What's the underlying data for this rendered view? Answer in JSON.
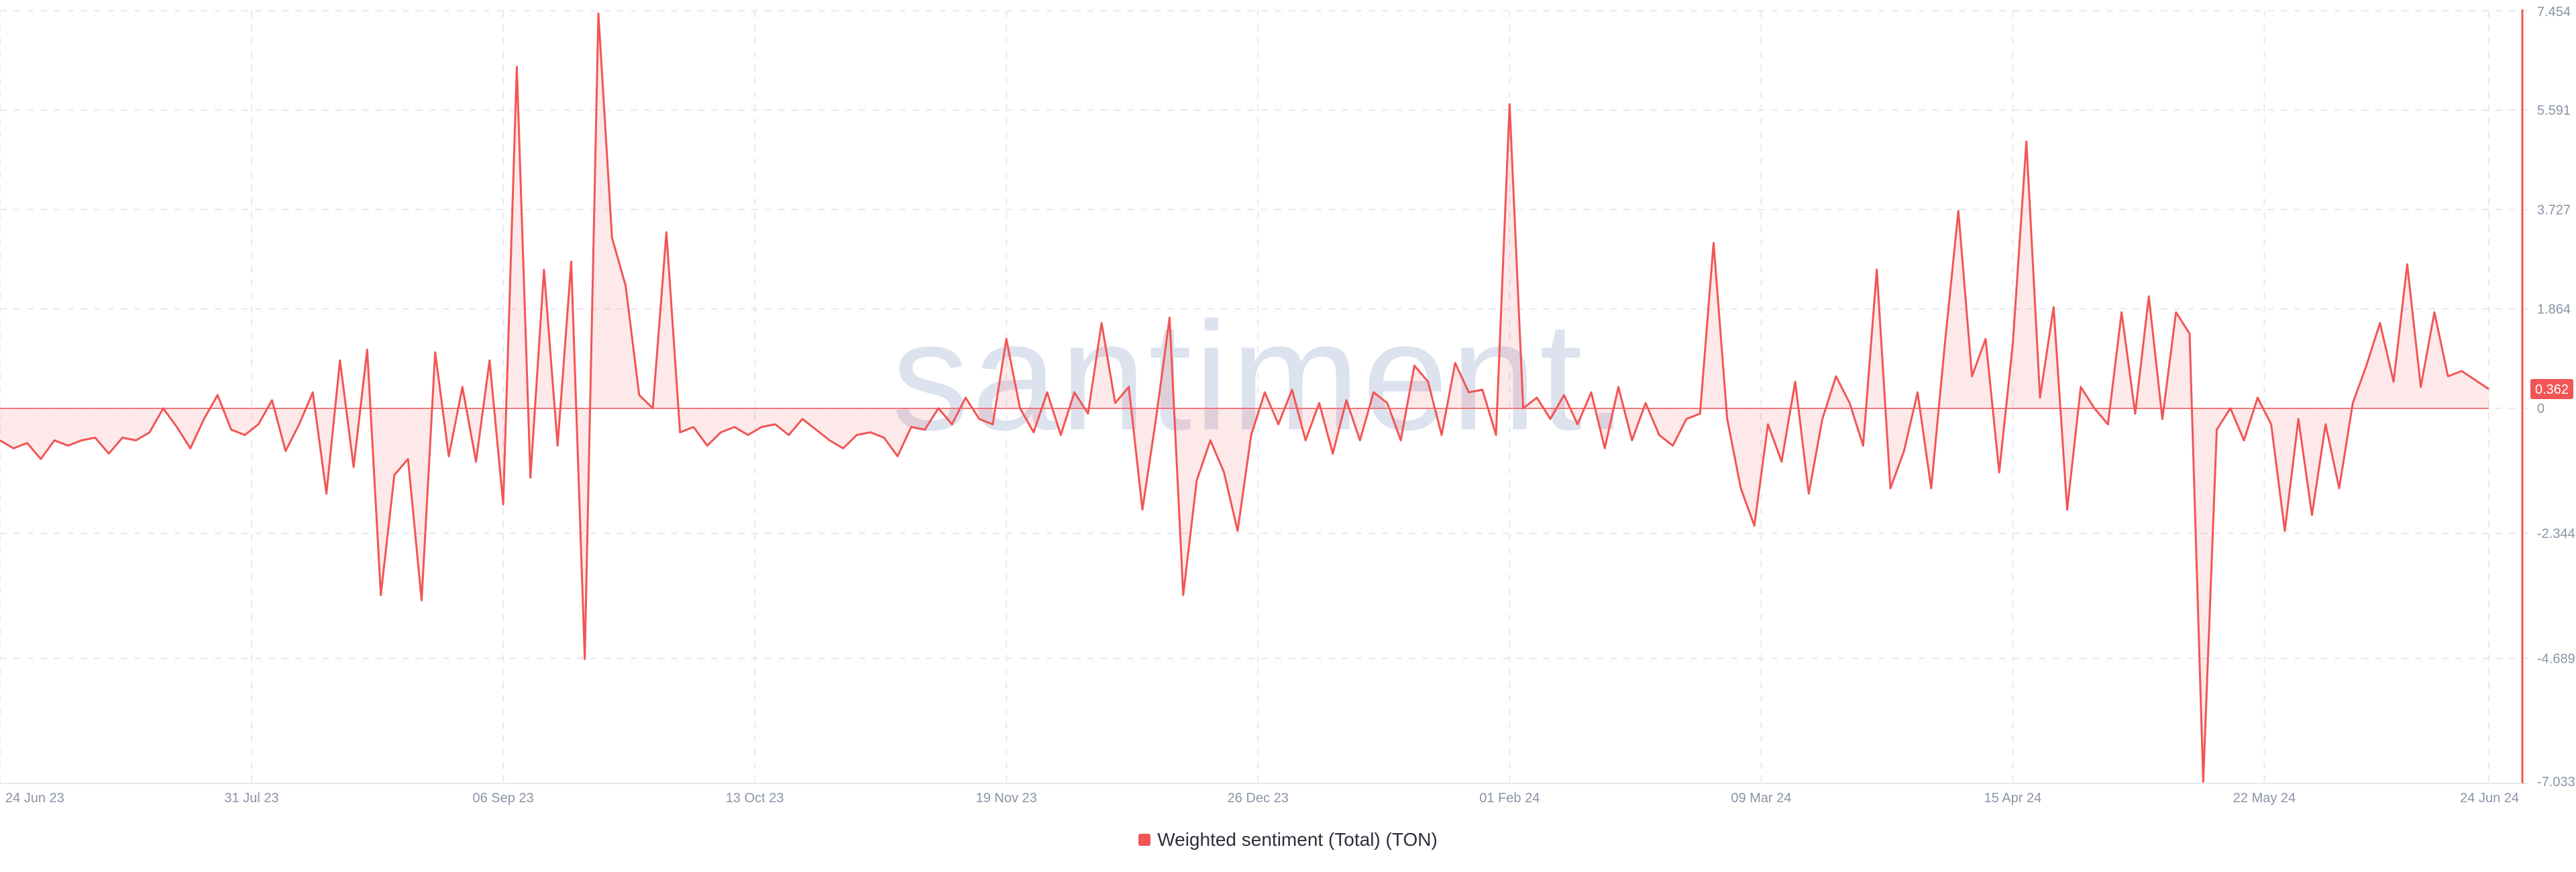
{
  "watermark": "santiment.",
  "legend": {
    "label": "Weighted sentiment (Total) (TON)"
  },
  "colors": {
    "series": "#f25555",
    "fill": "rgba(242,85,85,0.13)",
    "grid": "#e6e9f0",
    "axis": "#8a93a6",
    "badge_text": "#ffffff"
  },
  "chart_data": {
    "type": "area",
    "title": "",
    "xlabel": "",
    "ylabel": "",
    "grid": true,
    "legend_position": "bottom-center",
    "x_range": [
      "2023-06-24",
      "2024-06-24"
    ],
    "ylim": [
      -7.033,
      7.454
    ],
    "x_tick_labels": [
      "24 Jun 23",
      "31 Jul 23",
      "06 Sep 23",
      "13 Oct 23",
      "19 Nov 23",
      "26 Dec 23",
      "01 Feb 24",
      "09 Mar 24",
      "15 Apr 24",
      "22 May 24",
      "24 Jun 24"
    ],
    "x_tick_dates": [
      "2023-06-24",
      "2023-07-31",
      "2023-09-06",
      "2023-10-13",
      "2023-11-19",
      "2023-12-26",
      "2024-02-01",
      "2024-03-09",
      "2024-04-15",
      "2024-05-22",
      "2024-06-24"
    ],
    "y_ticks": [
      7.454,
      5.591,
      3.727,
      1.864,
      0,
      -2.344,
      -4.689,
      -7.033
    ],
    "y_tick_labels": [
      "7.454",
      "5.591",
      "3.727",
      "1.864",
      "0",
      "-2.344",
      "-4.689",
      "-7.033"
    ],
    "last_value_label": "0.362",
    "series": [
      {
        "name": "Weighted sentiment (Total) (TON)",
        "points": [
          [
            "2023-06-24",
            -0.6
          ],
          [
            "2023-06-26",
            -0.75
          ],
          [
            "2023-06-28",
            -0.65
          ],
          [
            "2023-06-30",
            -0.95
          ],
          [
            "2023-07-02",
            -0.6
          ],
          [
            "2023-07-04",
            -0.7
          ],
          [
            "2023-07-06",
            -0.6
          ],
          [
            "2023-07-08",
            -0.55
          ],
          [
            "2023-07-10",
            -0.85
          ],
          [
            "2023-07-12",
            -0.55
          ],
          [
            "2023-07-14",
            -0.6
          ],
          [
            "2023-07-16",
            -0.45
          ],
          [
            "2023-07-18",
            0.0
          ],
          [
            "2023-07-20",
            -0.35
          ],
          [
            "2023-07-22",
            -0.75
          ],
          [
            "2023-07-24",
            -0.2
          ],
          [
            "2023-07-26",
            0.25
          ],
          [
            "2023-07-28",
            -0.4
          ],
          [
            "2023-07-30",
            -0.5
          ],
          [
            "2023-08-01",
            -0.3
          ],
          [
            "2023-08-03",
            0.15
          ],
          [
            "2023-08-05",
            -0.8
          ],
          [
            "2023-08-07",
            -0.3
          ],
          [
            "2023-08-09",
            0.3
          ],
          [
            "2023-08-11",
            -1.6
          ],
          [
            "2023-08-13",
            0.9
          ],
          [
            "2023-08-15",
            -1.1
          ],
          [
            "2023-08-17",
            1.1
          ],
          [
            "2023-08-19",
            -3.5
          ],
          [
            "2023-08-21",
            -1.25
          ],
          [
            "2023-08-23",
            -0.95
          ],
          [
            "2023-08-25",
            -3.6
          ],
          [
            "2023-08-27",
            1.05
          ],
          [
            "2023-08-29",
            -0.9
          ],
          [
            "2023-08-31",
            0.4
          ],
          [
            "2023-09-02",
            -1.0
          ],
          [
            "2023-09-04",
            0.9
          ],
          [
            "2023-09-06",
            -1.8
          ],
          [
            "2023-09-08",
            6.4
          ],
          [
            "2023-09-10",
            -1.3
          ],
          [
            "2023-09-12",
            2.6
          ],
          [
            "2023-09-14",
            -0.7
          ],
          [
            "2023-09-16",
            2.75
          ],
          [
            "2023-09-18",
            -4.7
          ],
          [
            "2023-09-20",
            7.4
          ],
          [
            "2023-09-22",
            3.2
          ],
          [
            "2023-09-24",
            2.3
          ],
          [
            "2023-09-26",
            0.25
          ],
          [
            "2023-09-28",
            0.0
          ],
          [
            "2023-09-30",
            3.3
          ],
          [
            "2023-10-02",
            -0.45
          ],
          [
            "2023-10-04",
            -0.35
          ],
          [
            "2023-10-06",
            -0.7
          ],
          [
            "2023-10-08",
            -0.45
          ],
          [
            "2023-10-10",
            -0.35
          ],
          [
            "2023-10-12",
            -0.5
          ],
          [
            "2023-10-14",
            -0.35
          ],
          [
            "2023-10-16",
            -0.3
          ],
          [
            "2023-10-18",
            -0.5
          ],
          [
            "2023-10-20",
            -0.2
          ],
          [
            "2023-10-22",
            -0.4
          ],
          [
            "2023-10-24",
            -0.6
          ],
          [
            "2023-10-26",
            -0.75
          ],
          [
            "2023-10-28",
            -0.5
          ],
          [
            "2023-10-30",
            -0.45
          ],
          [
            "2023-11-01",
            -0.55
          ],
          [
            "2023-11-03",
            -0.9
          ],
          [
            "2023-11-05",
            -0.35
          ],
          [
            "2023-11-07",
            -0.4
          ],
          [
            "2023-11-09",
            0.0
          ],
          [
            "2023-11-11",
            -0.3
          ],
          [
            "2023-11-13",
            0.2
          ],
          [
            "2023-11-15",
            -0.2
          ],
          [
            "2023-11-17",
            -0.3
          ],
          [
            "2023-11-19",
            1.3
          ],
          [
            "2023-11-21",
            0.0
          ],
          [
            "2023-11-23",
            -0.45
          ],
          [
            "2023-11-25",
            0.3
          ],
          [
            "2023-11-27",
            -0.5
          ],
          [
            "2023-11-29",
            0.3
          ],
          [
            "2023-12-01",
            -0.1
          ],
          [
            "2023-12-03",
            1.6
          ],
          [
            "2023-12-05",
            0.1
          ],
          [
            "2023-12-07",
            0.4
          ],
          [
            "2023-12-09",
            -1.9
          ],
          [
            "2023-12-11",
            -0.2
          ],
          [
            "2023-12-13",
            1.7
          ],
          [
            "2023-12-15",
            -3.5
          ],
          [
            "2023-12-17",
            -1.35
          ],
          [
            "2023-12-19",
            -0.6
          ],
          [
            "2023-12-21",
            -1.2
          ],
          [
            "2023-12-23",
            -2.3
          ],
          [
            "2023-12-25",
            -0.5
          ],
          [
            "2023-12-27",
            0.3
          ],
          [
            "2023-12-29",
            -0.3
          ],
          [
            "2023-12-31",
            0.35
          ],
          [
            "2024-01-02",
            -0.6
          ],
          [
            "2024-01-04",
            0.1
          ],
          [
            "2024-01-06",
            -0.85
          ],
          [
            "2024-01-08",
            0.15
          ],
          [
            "2024-01-10",
            -0.6
          ],
          [
            "2024-01-12",
            0.3
          ],
          [
            "2024-01-14",
            0.1
          ],
          [
            "2024-01-16",
            -0.6
          ],
          [
            "2024-01-18",
            0.8
          ],
          [
            "2024-01-20",
            0.5
          ],
          [
            "2024-01-22",
            -0.5
          ],
          [
            "2024-01-24",
            0.85
          ],
          [
            "2024-01-26",
            0.3
          ],
          [
            "2024-01-28",
            0.35
          ],
          [
            "2024-01-30",
            -0.5
          ],
          [
            "2024-02-01",
            5.7
          ],
          [
            "2024-02-03",
            0.0
          ],
          [
            "2024-02-05",
            0.2
          ],
          [
            "2024-02-07",
            -0.2
          ],
          [
            "2024-02-09",
            0.25
          ],
          [
            "2024-02-11",
            -0.3
          ],
          [
            "2024-02-13",
            0.3
          ],
          [
            "2024-02-15",
            -0.75
          ],
          [
            "2024-02-17",
            0.4
          ],
          [
            "2024-02-19",
            -0.6
          ],
          [
            "2024-02-21",
            0.1
          ],
          [
            "2024-02-23",
            -0.5
          ],
          [
            "2024-02-25",
            -0.7
          ],
          [
            "2024-02-27",
            -0.2
          ],
          [
            "2024-02-29",
            -0.1
          ],
          [
            "2024-03-02",
            3.1
          ],
          [
            "2024-03-04",
            -0.2
          ],
          [
            "2024-03-06",
            -1.5
          ],
          [
            "2024-03-08",
            -2.2
          ],
          [
            "2024-03-10",
            -0.3
          ],
          [
            "2024-03-12",
            -1.0
          ],
          [
            "2024-03-14",
            0.5
          ],
          [
            "2024-03-16",
            -1.6
          ],
          [
            "2024-03-18",
            -0.2
          ],
          [
            "2024-03-20",
            0.6
          ],
          [
            "2024-03-22",
            0.1
          ],
          [
            "2024-03-24",
            -0.7
          ],
          [
            "2024-03-26",
            2.6
          ],
          [
            "2024-03-28",
            -1.5
          ],
          [
            "2024-03-30",
            -0.8
          ],
          [
            "2024-04-01",
            0.3
          ],
          [
            "2024-04-03",
            -1.5
          ],
          [
            "2024-04-05",
            1.2
          ],
          [
            "2024-04-07",
            3.7
          ],
          [
            "2024-04-09",
            0.6
          ],
          [
            "2024-04-11",
            1.3
          ],
          [
            "2024-04-13",
            -1.2
          ],
          [
            "2024-04-15",
            1.2
          ],
          [
            "2024-04-17",
            5.0
          ],
          [
            "2024-04-19",
            0.2
          ],
          [
            "2024-04-21",
            1.9
          ],
          [
            "2024-04-23",
            -1.9
          ],
          [
            "2024-04-25",
            0.4
          ],
          [
            "2024-04-27",
            0.0
          ],
          [
            "2024-04-29",
            -0.3
          ],
          [
            "2024-05-01",
            1.8
          ],
          [
            "2024-05-03",
            -0.1
          ],
          [
            "2024-05-05",
            2.1
          ],
          [
            "2024-05-07",
            -0.2
          ],
          [
            "2024-05-09",
            1.8
          ],
          [
            "2024-05-11",
            1.4
          ],
          [
            "2024-05-13",
            -7.0
          ],
          [
            "2024-05-15",
            -0.4
          ],
          [
            "2024-05-17",
            0.0
          ],
          [
            "2024-05-19",
            -0.6
          ],
          [
            "2024-05-21",
            0.2
          ],
          [
            "2024-05-23",
            -0.3
          ],
          [
            "2024-05-25",
            -2.3
          ],
          [
            "2024-05-27",
            -0.2
          ],
          [
            "2024-05-29",
            -2.0
          ],
          [
            "2024-05-31",
            -0.3
          ],
          [
            "2024-06-02",
            -1.5
          ],
          [
            "2024-06-04",
            0.1
          ],
          [
            "2024-06-06",
            0.8
          ],
          [
            "2024-06-08",
            1.6
          ],
          [
            "2024-06-10",
            0.5
          ],
          [
            "2024-06-12",
            2.7
          ],
          [
            "2024-06-14",
            0.4
          ],
          [
            "2024-06-16",
            1.8
          ],
          [
            "2024-06-18",
            0.6
          ],
          [
            "2024-06-20",
            0.7
          ],
          [
            "2024-06-24",
            0.362
          ]
        ]
      }
    ]
  }
}
